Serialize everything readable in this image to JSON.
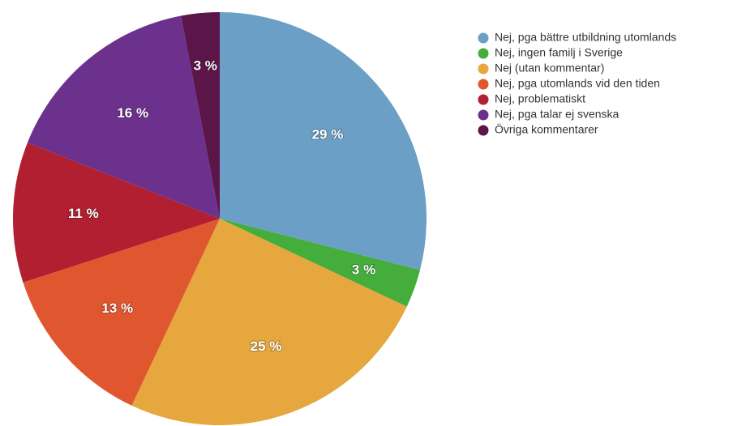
{
  "chart_data": {
    "type": "pie",
    "categories": [
      "Nej, pga bättre utbildning utomlands",
      "Nej, ingen familj i Sverige",
      "Nej (utan kommentar)",
      "Nej, pga utomlands vid den tiden",
      "Nej, problematiskt",
      "Nej, pga talar ej svenska",
      "Övriga kommentarer"
    ],
    "values": [
      29,
      3,
      25,
      13,
      11,
      16,
      3
    ],
    "value_labels": [
      "29 %",
      "3 %",
      "25 %",
      "13 %",
      "11 %",
      "16 %",
      "3 %"
    ],
    "colors": [
      "#6b9fc6",
      "#45ad3c",
      "#e5a73e",
      "#e0562f",
      "#b11f31",
      "#6c318c",
      "#5c1548"
    ]
  }
}
